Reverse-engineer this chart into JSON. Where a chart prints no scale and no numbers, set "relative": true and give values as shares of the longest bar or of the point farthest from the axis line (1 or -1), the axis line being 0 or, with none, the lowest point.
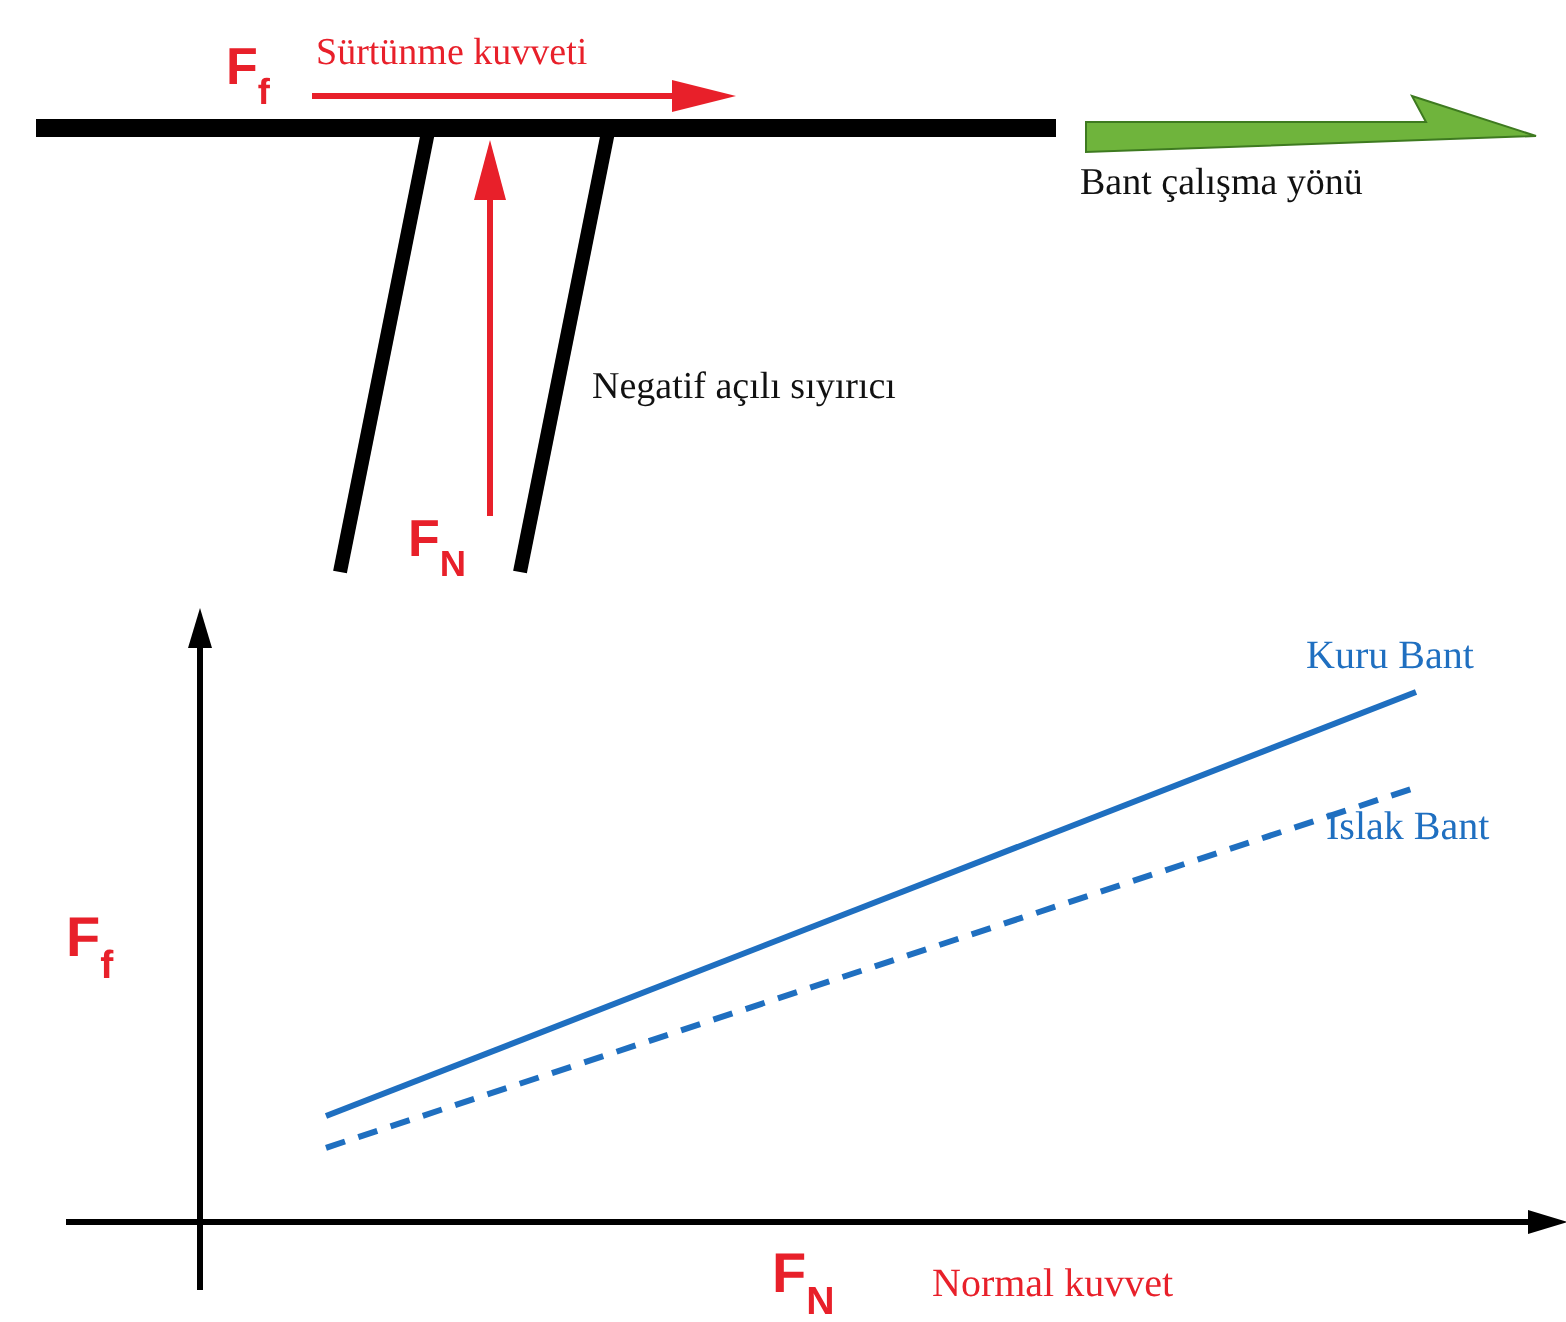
{
  "chart_data": {
    "type": "line",
    "relative": true,
    "categories": [
      null,
      null
    ],
    "xlabel": "F$_{N}$ Normal kuvvet",
    "ylabel": "F$_{f}$",
    "series": [
      {
        "name": "Kuru Bant",
        "color": "#1f6fc0",
        "values": [
          0.2,
          1
        ],
        "line_style": "solid"
      },
      {
        "name": "Islak Bant",
        "color": "#1f6fc0",
        "values": [
          0.14,
          0.82
        ],
        "line_style": "dashed"
      }
    ],
    "marker": "none",
    "grid": false,
    "annotations": [
      "F$_{f}$",
      "Sürtünme kuvveti",
      "Bant çalışma yönü",
      "Negatif açılı sıyırıcı",
      "F$_{N}$"
    ]
  }
}
